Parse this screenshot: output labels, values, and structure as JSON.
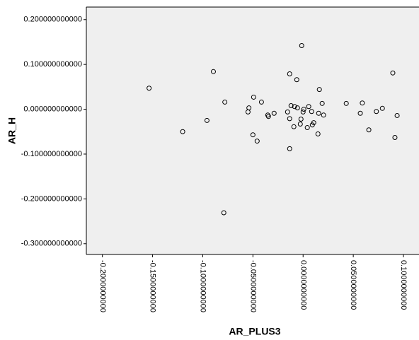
{
  "chart_data": {
    "type": "scatter",
    "x_label": "AR_PLUS3",
    "y_label": "AR_H",
    "xlim": [
      -0.216,
      0.1155
    ],
    "ylim": [
      -0.324,
      0.228
    ],
    "xticks": [
      {
        "value": -0.2,
        "label": "-0.2000000000"
      },
      {
        "value": -0.15,
        "label": "-0.1500000000"
      },
      {
        "value": -0.1,
        "label": "-0.1000000000"
      },
      {
        "value": -0.05,
        "label": "-0.0500000000"
      },
      {
        "value": 0,
        "label": "0.0000000000"
      },
      {
        "value": 0.05,
        "label": "0.0500000000"
      },
      {
        "value": 0.1,
        "label": "0.1000000000"
      }
    ],
    "yticks": [
      {
        "value": 0.2,
        "label": "0.200000000000"
      },
      {
        "value": 0.1,
        "label": "0.100000000000"
      },
      {
        "value": 0,
        "label": "0.000000000000"
      },
      {
        "value": -0.1,
        "label": "-0.100000000000"
      },
      {
        "value": -0.2,
        "label": "-0.200000000000"
      },
      {
        "value": -0.3,
        "label": "-0.300000000000"
      }
    ],
    "color": "#000000",
    "background": "#efefef",
    "x": [
      -0.1535,
      -0.0894,
      -0.12,
      -0.0958,
      -0.078,
      -0.079,
      -0.0014,
      -0.0134,
      0.0894,
      -0.0063,
      0.0162,
      -0.0493,
      -0.054,
      -0.0549,
      -0.0415,
      -0.0352,
      -0.0345,
      -0.0289,
      -0.05,
      -0.0458,
      -0.0155,
      -0.0134,
      -0.012,
      -0.0092,
      -0.0085,
      -0.0056,
      -0.0021,
      -0.0028,
      0,
      0.0007,
      0.0056,
      0.0042,
      0.0085,
      0.0092,
      0.0106,
      0.0155,
      0.0148,
      0.019,
      0.0204,
      -0.0134,
      0.043,
      0.059,
      0.057,
      0.0655,
      0.073,
      0.079,
      0.0937,
      0.0915
    ],
    "values": [
      0.047,
      0.084,
      -0.05,
      -0.025,
      0.016,
      -0.231,
      0.142,
      0.079,
      0.081,
      0.066,
      0.044,
      0.027,
      0.003,
      -0.006,
      0.016,
      -0.013,
      -0.016,
      -0.009,
      -0.057,
      -0.071,
      -0.006,
      -0.021,
      0.008,
      -0.039,
      0.006,
      0.003,
      -0.022,
      -0.033,
      -0.006,
      0,
      0.006,
      -0.041,
      -0.005,
      -0.035,
      -0.03,
      -0.009,
      -0.055,
      0.013,
      -0.013,
      -0.088,
      0.013,
      0.014,
      -0.009,
      -0.046,
      -0.005,
      0.002,
      -0.014,
      -0.063
    ]
  }
}
